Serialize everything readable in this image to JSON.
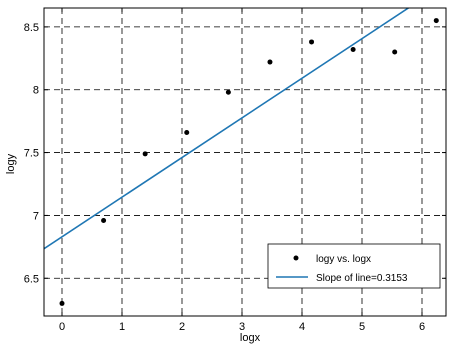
{
  "chart_data": {
    "type": "scatter",
    "xlabel": "logx",
    "ylabel": "logy",
    "xlim": [
      -0.3,
      6.4
    ],
    "ylim": [
      6.2,
      8.65
    ],
    "xticks": [
      0,
      1,
      2,
      3,
      4,
      5,
      6
    ],
    "xtick_labels": [
      "0",
      "1",
      "2",
      "3",
      "4",
      "5",
      "6"
    ],
    "yticks": [
      6.5,
      7,
      7.5,
      8,
      8.5
    ],
    "ytick_labels": [
      "6.5",
      "7",
      "7.5",
      "8",
      "8.5"
    ],
    "grid": true,
    "legend_position": "bottom-right",
    "series": [
      {
        "name": "logy vs. logx",
        "kind": "scatter",
        "color": "#000000",
        "x": [
          0,
          0.693,
          1.386,
          2.079,
          2.773,
          3.466,
          4.159,
          4.852,
          5.545,
          6.238
        ],
        "y": [
          6.3,
          6.96,
          7.49,
          7.66,
          7.98,
          8.22,
          8.38,
          8.32,
          8.3,
          8.55
        ]
      },
      {
        "name": "Slope of line=0.3153",
        "kind": "line",
        "color": "#1f77b4",
        "slope": 0.3153,
        "intercept": 6.83
      }
    ]
  }
}
